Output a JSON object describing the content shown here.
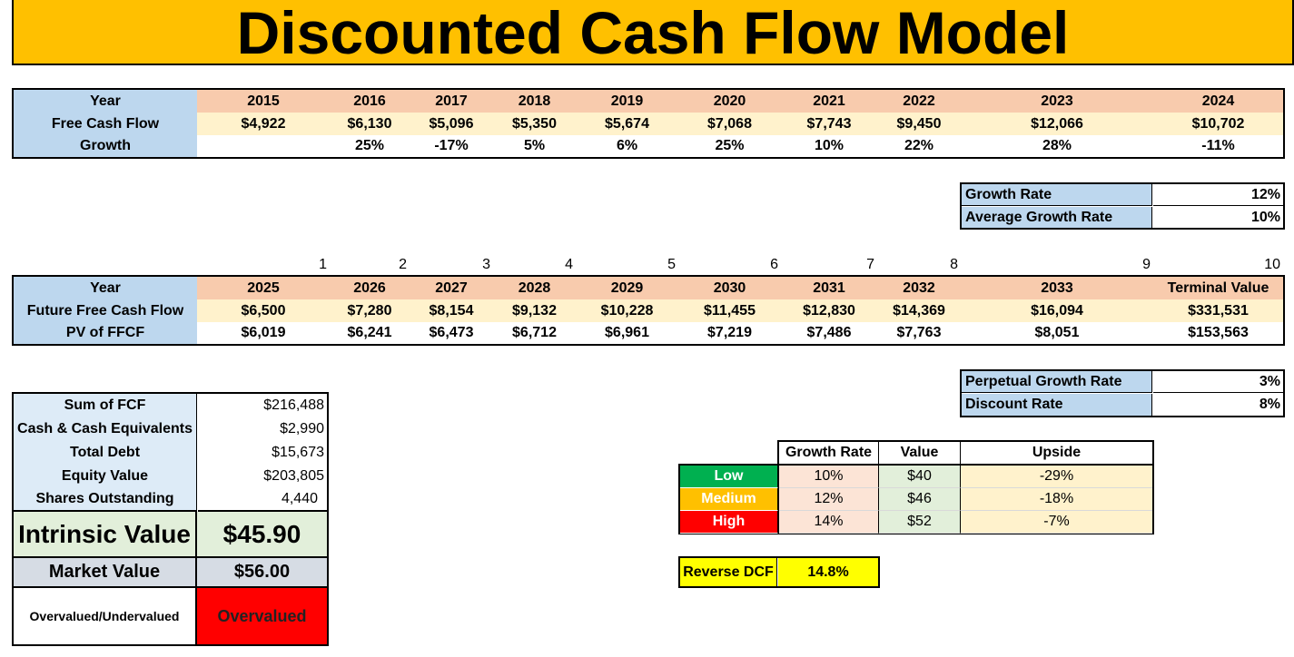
{
  "title": "Discounted Cash Flow Model",
  "historical": {
    "labels": {
      "year": "Year",
      "fcf": "Free Cash Flow",
      "growth": "Growth"
    },
    "years": [
      "2015",
      "2016",
      "2017",
      "2018",
      "2019",
      "2020",
      "2021",
      "2022",
      "2023",
      "2024"
    ],
    "fcf": [
      "$4,922",
      "$6,130",
      "$5,096",
      "$5,350",
      "$5,674",
      "$7,068",
      "$7,743",
      "$9,450",
      "$12,066",
      "$10,702"
    ],
    "growth": [
      "",
      "25%",
      "-17%",
      "5%",
      "6%",
      "25%",
      "10%",
      "22%",
      "28%",
      "-11%"
    ]
  },
  "rates1": {
    "growth_rate_label": "Growth Rate",
    "growth_rate": "12%",
    "avg_growth_label": "Average Growth Rate",
    "avg_growth": "10%"
  },
  "projection": {
    "periods": [
      "1",
      "2",
      "3",
      "4",
      "5",
      "6",
      "7",
      "8",
      "9",
      "10"
    ],
    "labels": {
      "year": "Year",
      "ffcf": "Future Free Cash Flow",
      "pv": "PV of FFCF"
    },
    "years": [
      "2025",
      "2026",
      "2027",
      "2028",
      "2029",
      "2030",
      "2031",
      "2032",
      "2033",
      "Terminal Value"
    ],
    "ffcf": [
      "$6,500",
      "$7,280",
      "$8,154",
      "$9,132",
      "$10,228",
      "$11,455",
      "$12,830",
      "$14,369",
      "$16,094",
      "$331,531"
    ],
    "pv": [
      "$6,019",
      "$6,241",
      "$6,473",
      "$6,712",
      "$6,961",
      "$7,219",
      "$7,486",
      "$7,763",
      "$8,051",
      "$153,563"
    ]
  },
  "rates2": {
    "perp_label": "Perpetual Growth Rate",
    "perp": "3%",
    "disc_label": "Discount Rate",
    "disc": "8%"
  },
  "valuation": {
    "sum_fcf_label": "Sum of FCF",
    "sum_fcf": "$216,488",
    "cash_label": "Cash & Cash Equivalents",
    "cash": "$2,990",
    "debt_label": "Total Debt",
    "debt": "$15,673",
    "equity_label": "Equity Value",
    "equity": "$203,805",
    "shares_label": "Shares Outstanding",
    "shares": "4,440",
    "intrinsic_label": "Intrinsic Value",
    "intrinsic": "$45.90",
    "market_label": "Market Value",
    "market": "$56.00",
    "status_label": "Overvalued/Undervalued",
    "status": "Overvalued"
  },
  "scenarios": {
    "headers": {
      "growth": "Growth Rate",
      "value": "Value",
      "upside": "Upside"
    },
    "rows": [
      {
        "name": "Low",
        "growth": "10%",
        "value": "$40",
        "upside": "-29%",
        "color": "#00b050"
      },
      {
        "name": "Medium",
        "growth": "12%",
        "value": "$46",
        "upside": "-18%",
        "color": "#ffc000"
      },
      {
        "name": "High",
        "growth": "14%",
        "value": "$52",
        "upside": "-7%",
        "color": "#ff0000"
      }
    ]
  },
  "reverse_dcf": {
    "label": "Reverse DCF",
    "value": "14.8%"
  },
  "colors": {
    "title_bg": "#ffc000",
    "overvalued_bg": "#ff0000",
    "reverse_bg": "#ffff00"
  }
}
